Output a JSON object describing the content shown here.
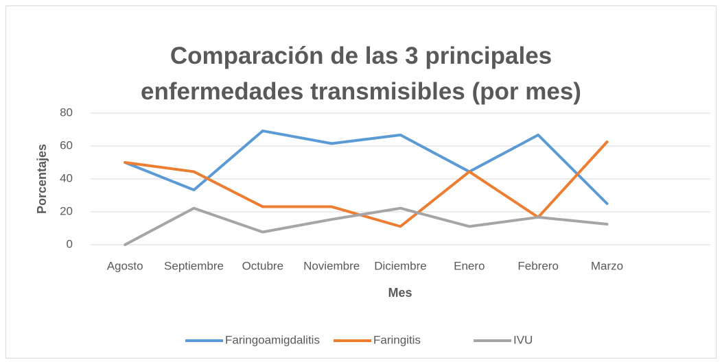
{
  "chart_data": {
    "type": "line",
    "title": "Comparación de las 3 principales enfermedades transmisibles (por mes)",
    "x_label": "Mes",
    "y_label": "Porcentajes",
    "categories": [
      "Agosto",
      "Septiembre",
      "Octubre",
      "Noviembre",
      "Diciembre",
      "Enero",
      "Febrero",
      "Marzo",
      null
    ],
    "series": [
      {
        "name": "Faringoamigdalitis",
        "color": "#5b9bd5",
        "values": [
          50,
          33.3,
          69.2,
          61.5,
          66.7,
          44.4,
          66.7,
          25,
          null
        ]
      },
      {
        "name": "Faringitis",
        "color": "#ed7d31",
        "values": [
          50,
          44.4,
          23.1,
          23.1,
          11.1,
          44.4,
          16.7,
          62.5,
          null
        ]
      },
      {
        "name": "IVU",
        "color": "#a5a5a5",
        "values": [
          0,
          22.2,
          7.7,
          15.4,
          22.2,
          11.1,
          16.7,
          12.5,
          null
        ]
      }
    ],
    "ylim": [
      0,
      80
    ],
    "yticks": [
      0,
      20,
      40,
      60,
      80
    ],
    "grid": true,
    "legend": "bottom"
  }
}
